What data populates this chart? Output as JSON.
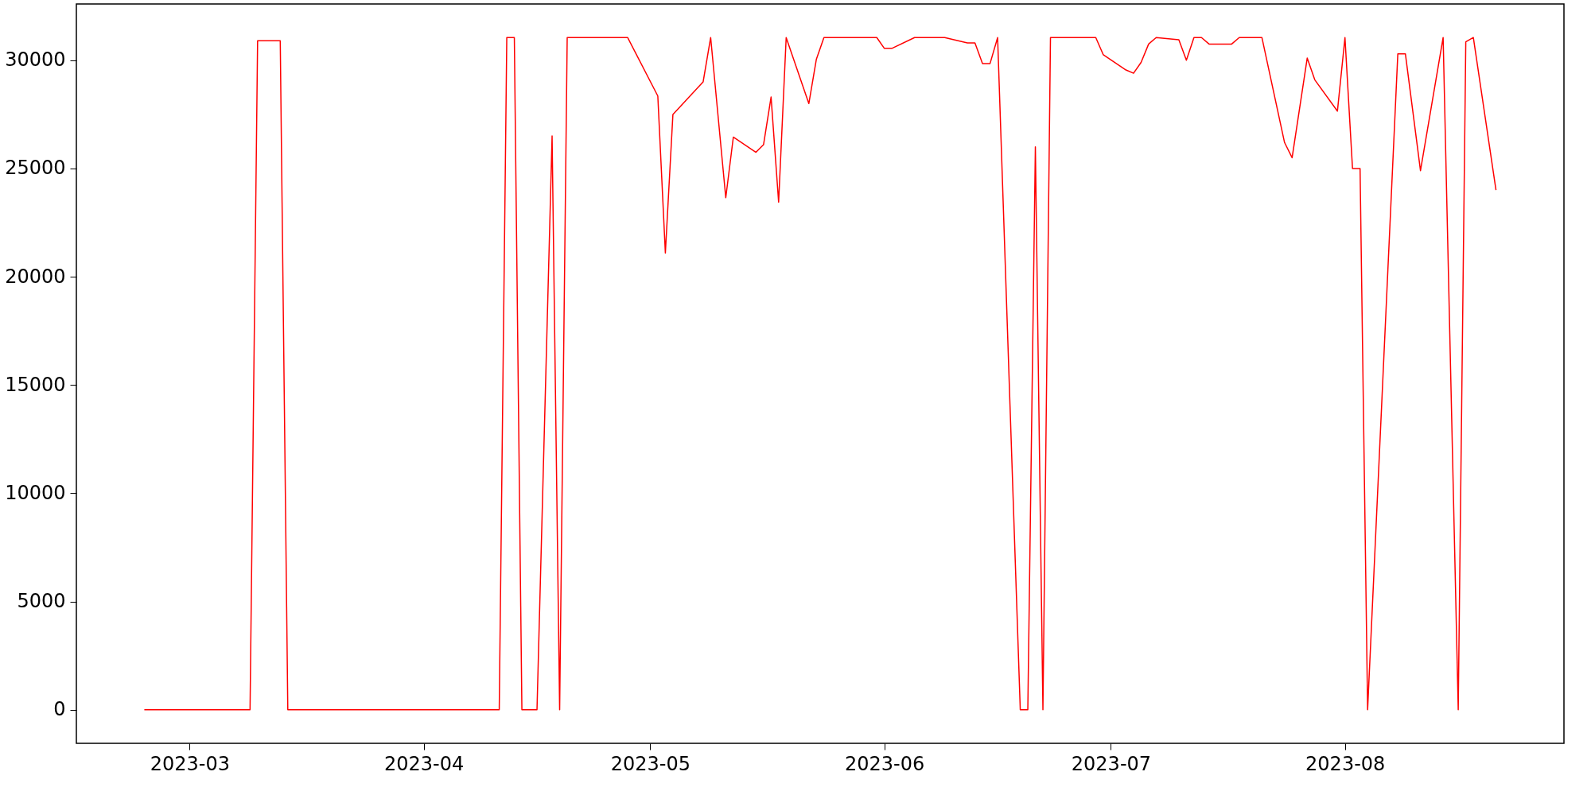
{
  "chart_data": {
    "type": "line",
    "x": [
      "2023-02-23",
      "2023-03-09",
      "2023-03-10",
      "2023-03-13",
      "2023-03-14",
      "2023-04-11",
      "2023-04-12",
      "2023-04-13",
      "2023-04-14",
      "2023-04-16",
      "2023-04-18",
      "2023-04-19",
      "2023-04-20",
      "2023-04-28",
      "2023-05-02",
      "2023-05-03",
      "2023-05-04",
      "2023-05-08",
      "2023-05-09",
      "2023-05-11",
      "2023-05-12",
      "2023-05-15",
      "2023-05-16",
      "2023-05-17",
      "2023-05-18",
      "2023-05-19",
      "2023-05-22",
      "2023-05-23",
      "2023-05-24",
      "2023-05-31",
      "2023-06-01",
      "2023-06-02",
      "2023-06-05",
      "2023-06-09",
      "2023-06-12",
      "2023-06-13",
      "2023-06-14",
      "2023-06-15",
      "2023-06-16",
      "2023-06-19",
      "2023-06-20",
      "2023-06-21",
      "2023-06-22",
      "2023-06-23",
      "2023-06-29",
      "2023-06-30",
      "2023-07-03",
      "2023-07-04",
      "2023-07-05",
      "2023-07-06",
      "2023-07-07",
      "2023-07-10",
      "2023-07-11",
      "2023-07-12",
      "2023-07-13",
      "2023-07-14",
      "2023-07-17",
      "2023-07-18",
      "2023-07-21",
      "2023-07-24",
      "2023-07-25",
      "2023-07-27",
      "2023-07-28",
      "2023-07-31",
      "2023-08-01",
      "2023-08-02",
      "2023-08-03",
      "2023-08-04",
      "2023-08-08",
      "2023-08-09",
      "2023-08-11",
      "2023-08-14",
      "2023-08-16",
      "2023-08-17",
      "2023-08-18",
      "2023-08-21"
    ],
    "series": [
      {
        "color": "#ff0000",
        "values": [
          0,
          0,
          30900,
          30900,
          0,
          0,
          31050,
          31050,
          0,
          0,
          26500,
          0,
          31050,
          31050,
          28350,
          21100,
          27500,
          29000,
          31050,
          23650,
          26450,
          25750,
          26100,
          28300,
          23450,
          31050,
          28000,
          30050,
          31050,
          31050,
          30550,
          30550,
          31050,
          31050,
          30800,
          30800,
          29850,
          29850,
          31050,
          0,
          0,
          26000,
          0,
          31050,
          31050,
          30250,
          29550,
          29400,
          29900,
          30750,
          31050,
          30950,
          30000,
          31050,
          31050,
          30750,
          30750,
          31050,
          31050,
          26200,
          25500,
          30100,
          29100,
          27650,
          31050,
          25000,
          25000,
          0,
          30300,
          30300,
          24900,
          31050,
          0,
          30850,
          31050,
          24000
        ]
      }
    ],
    "xlim": [
      "2023-02-14",
      "2023-08-30"
    ],
    "xticks": [
      "2023-03",
      "2023-04",
      "2023-05",
      "2023-06",
      "2023-07",
      "2023-08"
    ],
    "ylim": [
      -1550,
      32600
    ],
    "yticks": [
      0,
      5000,
      10000,
      15000,
      20000,
      25000,
      30000
    ],
    "grid": false,
    "legend": false,
    "marker": "none",
    "line_style": "solid"
  }
}
